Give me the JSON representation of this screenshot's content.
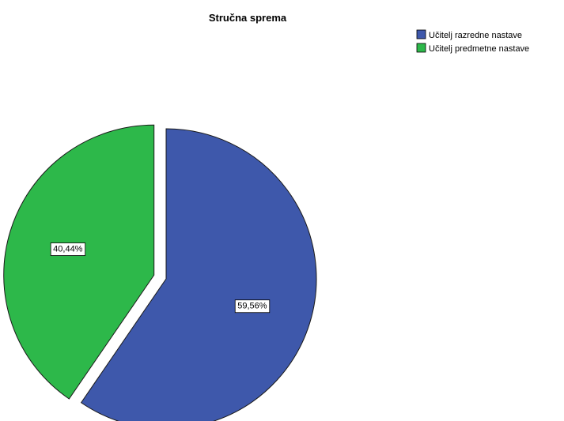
{
  "chart_data": {
    "type": "pie",
    "title": "Stručna sprema",
    "categories": [
      "Učitelj razredne nastave",
      "Učitelj predmetne nastave"
    ],
    "values": [
      59.56,
      40.44
    ],
    "labels": [
      "59,56%",
      "40,44%"
    ],
    "colors": [
      "#3e58ab",
      "#2db84a"
    ],
    "exploded": [
      false,
      true
    ],
    "legend_position": "top-right",
    "legend": [
      {
        "label": "Učitelj razredne nastave",
        "color": "#3e58ab"
      },
      {
        "label": "Učitelj predmetne nastave",
        "color": "#2db84a"
      }
    ]
  }
}
